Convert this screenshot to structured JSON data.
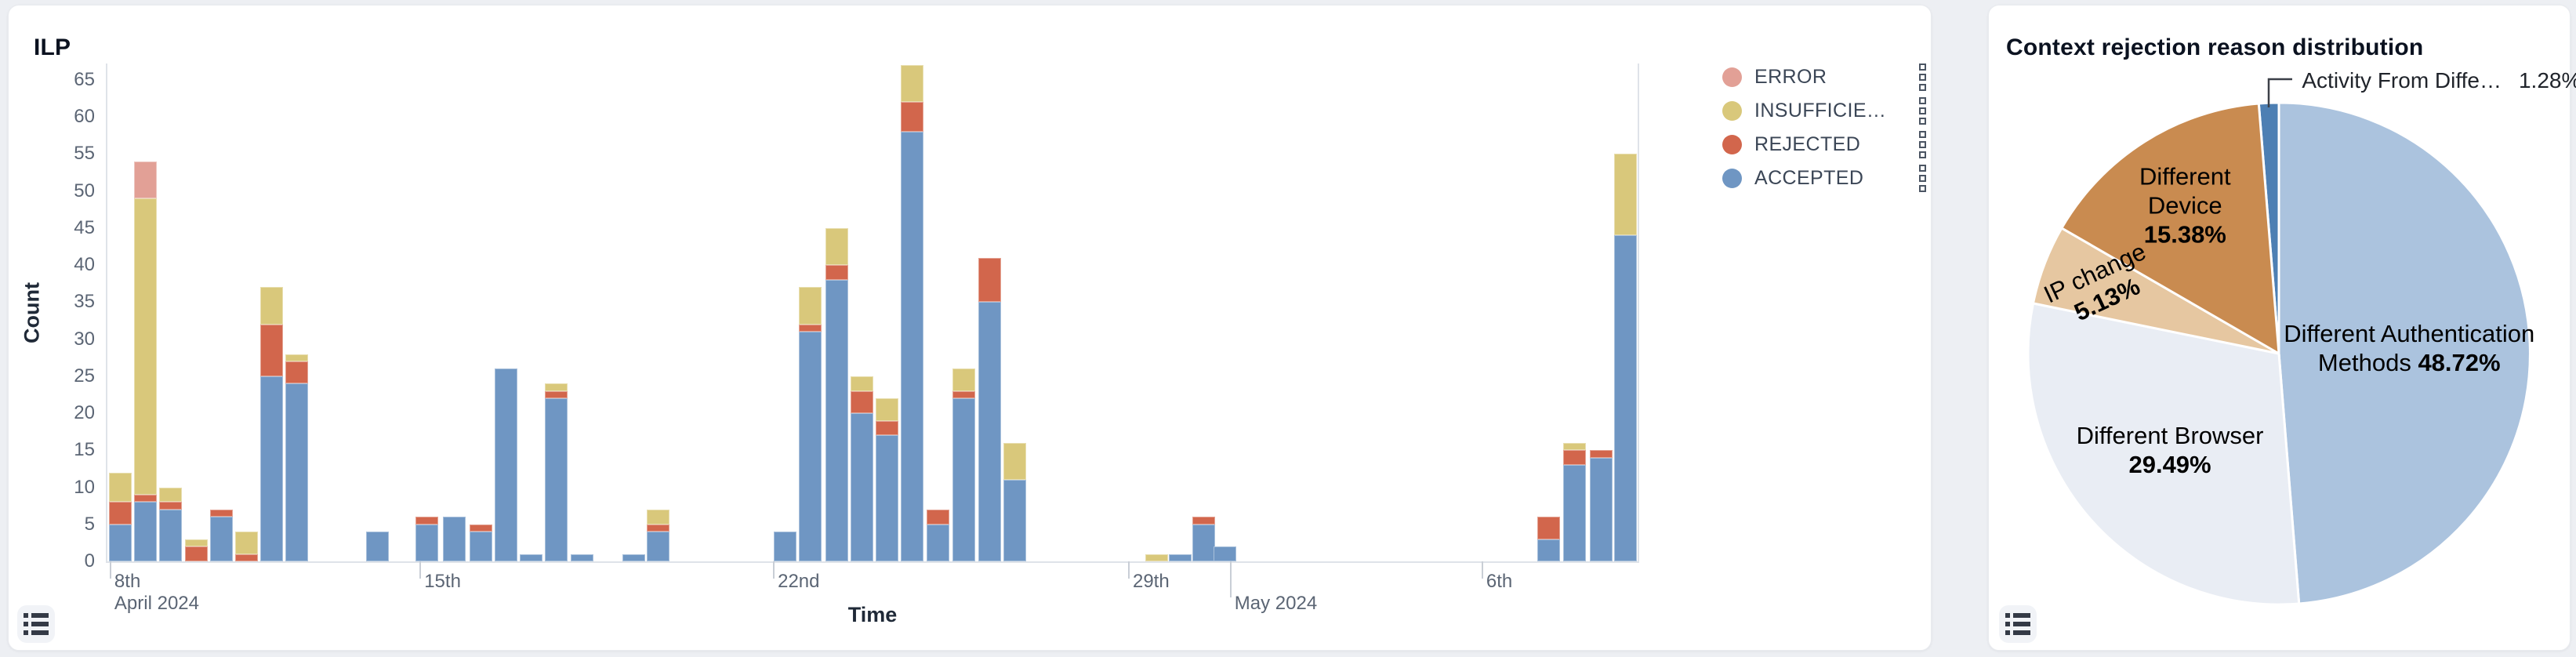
{
  "ilp_panel": {
    "toolbox_icon": "list-icon",
    "legend_handle_icon": "drag-handle-icon"
  },
  "rejection_panel": {
    "toolbox_icon": "list-icon"
  },
  "chart_data": [
    {
      "type": "bar",
      "title": "ILP",
      "xlabel": "Time",
      "ylabel": "Count",
      "stacked": true,
      "ylim": [
        0,
        65
      ],
      "y_ticks": [
        0,
        5,
        10,
        15,
        20,
        25,
        30,
        35,
        40,
        45,
        50,
        55,
        60,
        65
      ],
      "grid": false,
      "legend_position": "right-top",
      "legend": [
        {
          "label": "ERROR",
          "color": "#e2a096"
        },
        {
          "label": "INSUFFICIE…",
          "color": "#d9c87b"
        },
        {
          "label": "REJECTED",
          "color": "#d2664c"
        },
        {
          "label": "ACCEPTED",
          "color": "#6f96c3"
        }
      ],
      "stack_order_bottom_to_top": [
        "accepted",
        "rejected",
        "insufficient",
        "error"
      ],
      "series_colors": {
        "accepted": "#6f96c3",
        "rejected": "#d2664c",
        "insufficient": "#d9c87b",
        "error": "#e2a096"
      },
      "x_ticks": [
        {
          "label": "8th",
          "pct": 0.15,
          "row": 1,
          "sub": "April 2024"
        },
        {
          "label": "15th",
          "pct": 20.4,
          "row": 1
        },
        {
          "label": "22nd",
          "pct": 43.5,
          "row": 1
        },
        {
          "label": "29th",
          "pct": 66.7,
          "row": 1
        },
        {
          "label": "May 2024",
          "pct": 73.35,
          "row": 2,
          "long_tick": true
        },
        {
          "label": "6th",
          "pct": 89.8,
          "row": 1
        }
      ],
      "bars": [
        {
          "x_pct": 0.05,
          "accepted": 5,
          "rejected": 3,
          "insufficient": 4,
          "error": 0
        },
        {
          "x_pct": 1.7,
          "accepted": 8,
          "rejected": 1,
          "insufficient": 40,
          "error": 5
        },
        {
          "x_pct": 3.35,
          "accepted": 7,
          "rejected": 1,
          "insufficient": 2,
          "error": 0
        },
        {
          "x_pct": 5.0,
          "accepted": 0,
          "rejected": 2,
          "insufficient": 1,
          "error": 0
        },
        {
          "x_pct": 6.65,
          "accepted": 6,
          "rejected": 1,
          "insufficient": 0,
          "error": 0
        },
        {
          "x_pct": 8.3,
          "accepted": 0,
          "rejected": 1,
          "insufficient": 3,
          "error": 0
        },
        {
          "x_pct": 9.95,
          "accepted": 25,
          "rejected": 7,
          "insufficient": 5,
          "error": 0
        },
        {
          "x_pct": 11.6,
          "accepted": 24,
          "rejected": 3,
          "insufficient": 1,
          "error": 0
        },
        {
          "x_pct": 16.85,
          "accepted": 4,
          "rejected": 0,
          "insufficient": 0,
          "error": 0
        },
        {
          "x_pct": 20.1,
          "accepted": 5,
          "rejected": 1,
          "insufficient": 0,
          "error": 0
        },
        {
          "x_pct": 21.9,
          "accepted": 6,
          "rejected": 0,
          "insufficient": 0,
          "error": 0
        },
        {
          "x_pct": 23.6,
          "accepted": 4,
          "rejected": 1,
          "insufficient": 0,
          "error": 0
        },
        {
          "x_pct": 25.25,
          "accepted": 26,
          "rejected": 0,
          "insufficient": 0,
          "error": 0
        },
        {
          "x_pct": 26.9,
          "accepted": 1,
          "rejected": 0,
          "insufficient": 0,
          "error": 0
        },
        {
          "x_pct": 28.55,
          "accepted": 22,
          "rejected": 1,
          "insufficient": 1,
          "error": 0
        },
        {
          "x_pct": 30.25,
          "accepted": 1,
          "rejected": 0,
          "insufficient": 0,
          "error": 0
        },
        {
          "x_pct": 33.6,
          "accepted": 1,
          "rejected": 0,
          "insufficient": 0,
          "error": 0
        },
        {
          "x_pct": 35.2,
          "accepted": 4,
          "rejected": 1,
          "insufficient": 2,
          "error": 0
        },
        {
          "x_pct": 43.5,
          "accepted": 4,
          "rejected": 0,
          "insufficient": 0,
          "error": 0
        },
        {
          "x_pct": 45.15,
          "accepted": 31,
          "rejected": 1,
          "insufficient": 5,
          "error": 0
        },
        {
          "x_pct": 46.85,
          "accepted": 38,
          "rejected": 2,
          "insufficient": 5,
          "error": 0
        },
        {
          "x_pct": 48.5,
          "accepted": 20,
          "rejected": 3,
          "insufficient": 2,
          "error": 0
        },
        {
          "x_pct": 50.15,
          "accepted": 17,
          "rejected": 2,
          "insufficient": 3,
          "error": 0
        },
        {
          "x_pct": 51.8,
          "accepted": 58,
          "rejected": 4,
          "insufficient": 5,
          "error": 0
        },
        {
          "x_pct": 53.5,
          "accepted": 5,
          "rejected": 2,
          "insufficient": 0,
          "error": 0
        },
        {
          "x_pct": 55.15,
          "accepted": 22,
          "rejected": 1,
          "insufficient": 3,
          "error": 0
        },
        {
          "x_pct": 56.85,
          "accepted": 35,
          "rejected": 6,
          "insufficient": 0,
          "error": 0
        },
        {
          "x_pct": 58.5,
          "accepted": 11,
          "rejected": 0,
          "insufficient": 5,
          "error": 0
        },
        {
          "x_pct": 67.8,
          "accepted": 0,
          "rejected": 0,
          "insufficient": 1,
          "error": 0
        },
        {
          "x_pct": 69.3,
          "accepted": 1,
          "rejected": 0,
          "insufficient": 0,
          "error": 0
        },
        {
          "x_pct": 70.85,
          "accepted": 5,
          "rejected": 1,
          "insufficient": 0,
          "error": 0
        },
        {
          "x_pct": 72.25,
          "accepted": 2,
          "rejected": 0,
          "insufficient": 0,
          "error": 0
        },
        {
          "x_pct": 93.4,
          "accepted": 3,
          "rejected": 3,
          "insufficient": 0,
          "error": 0
        },
        {
          "x_pct": 95.1,
          "accepted": 13,
          "rejected": 2,
          "insufficient": 1,
          "error": 0
        },
        {
          "x_pct": 96.8,
          "accepted": 14,
          "rejected": 1,
          "insufficient": 0,
          "error": 0
        },
        {
          "x_pct": 98.4,
          "accepted": 44,
          "rejected": 0,
          "insufficient": 11,
          "error": 0
        }
      ]
    },
    {
      "type": "pie",
      "title": "Context rejection reason distribution",
      "start_angle_deg": -4.61,
      "slices": [
        {
          "label": "Activity From Diffe…",
          "pct": 1.28,
          "color": "#4d7fb3",
          "callout": true
        },
        {
          "label": "Different Authentication Methods",
          "pct": 48.72,
          "color": "#abc3de",
          "label_r": 0.52,
          "label_w": 350
        },
        {
          "label": "Different Browser",
          "pct": 29.49,
          "color": "#e9edf4",
          "label_r": 0.58,
          "label_w": 330
        },
        {
          "label": "IP change",
          "pct": 5.13,
          "color": "#e6c7a1",
          "label_r": 0.76,
          "label_w": 190,
          "label_rotate": -25
        },
        {
          "label": "Different Device",
          "pct": 15.38,
          "color": "#c98b50",
          "label_r": 0.7,
          "label_w": 175
        }
      ],
      "callout": {
        "name": "Activity From Diffe…",
        "pct_text": "1.28%"
      }
    }
  ]
}
